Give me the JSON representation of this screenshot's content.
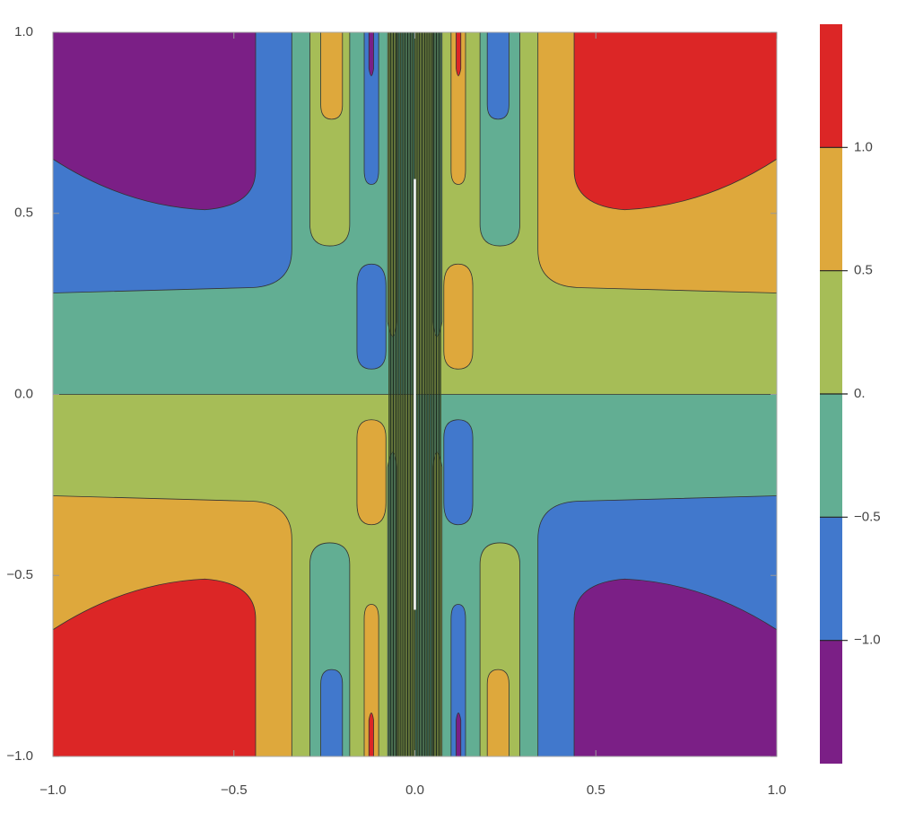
{
  "chart_data": {
    "type": "contour",
    "xlim": [
      -1,
      1
    ],
    "ylim": [
      -1,
      1
    ],
    "xticks": [
      {
        "value": -1,
        "label": "−1.0"
      },
      {
        "value": -0.5,
        "label": "−0.5"
      },
      {
        "value": 0,
        "label": "0.0"
      },
      {
        "value": 0.5,
        "label": "0.5"
      },
      {
        "value": 1,
        "label": "1.0"
      }
    ],
    "yticks": [
      {
        "value": -1,
        "label": "−1.0"
      },
      {
        "value": -0.5,
        "label": "−0.5"
      },
      {
        "value": 0,
        "label": "0.0"
      },
      {
        "value": 0.5,
        "label": "0.5"
      },
      {
        "value": 1,
        "label": "1.0"
      }
    ],
    "colorbar_lim": [
      -1.5,
      1.5
    ],
    "colorbar_ticks": [
      {
        "value": -1,
        "label": "−1.0"
      },
      {
        "value": -0.5,
        "label": "−0.5"
      },
      {
        "value": 0,
        "label": "0."
      },
      {
        "value": 0.5,
        "label": "0.5"
      },
      {
        "value": 1,
        "label": "1.0"
      }
    ],
    "band_colors": [
      "#7b1f86",
      "#4178cc",
      "#62ae93",
      "#a6bd57",
      "#dea83c",
      "#dc2626"
    ]
  }
}
